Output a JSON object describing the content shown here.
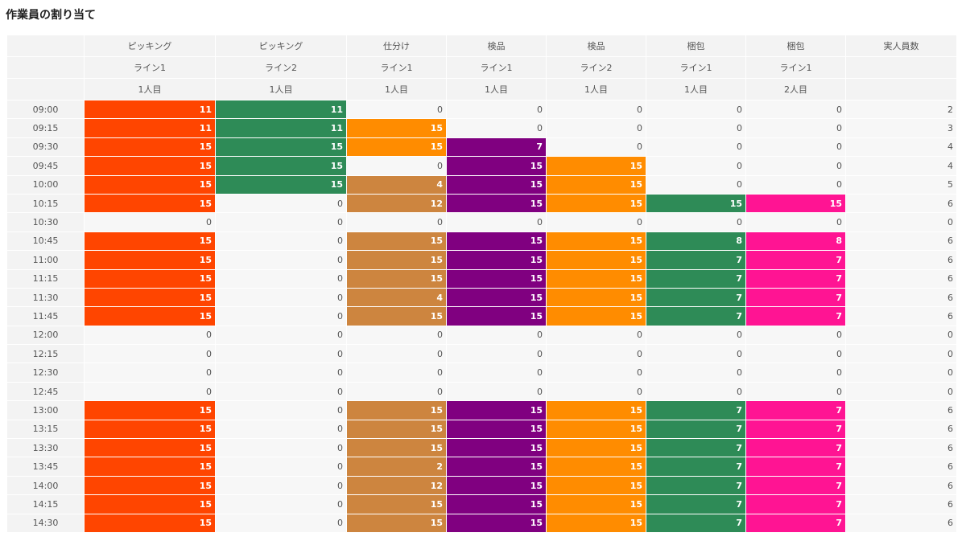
{
  "header": {
    "title": "作業員の割り当て"
  },
  "table": {
    "columns": [
      {
        "lines": [
          "ピッキング",
          "ライン1",
          "1人目"
        ],
        "color": "#ff4500"
      },
      {
        "lines": [
          "ピッキング",
          "ライン2",
          "1人目"
        ],
        "color": "#2e8b57"
      },
      {
        "lines": [
          "仕分け",
          "ライン1",
          "1人目"
        ],
        "color": "#cd853f"
      },
      {
        "lines": [
          "検品",
          "ライン1",
          "1人目"
        ],
        "color": "#800080"
      },
      {
        "lines": [
          "検品",
          "ライン2",
          "1人目"
        ],
        "color": "#ff8c00"
      },
      {
        "lines": [
          "梱包",
          "ライン1",
          "1人目"
        ],
        "color": "#2e8b57"
      },
      {
        "lines": [
          "梱包",
          "ライン1",
          "2人目"
        ],
        "color": "#ff1493"
      },
      {
        "lines": [
          "実人員数"
        ]
      }
    ],
    "rows": [
      {
        "time": "09:00",
        "values": [
          11,
          11,
          0,
          0,
          0,
          0,
          0
        ],
        "total": 2
      },
      {
        "time": "09:15",
        "values": [
          11,
          11,
          15,
          0,
          0,
          0,
          0
        ],
        "total": 3,
        "overrides": {
          "2": "#ff8c00"
        }
      },
      {
        "time": "09:30",
        "values": [
          15,
          15,
          15,
          7,
          0,
          0,
          0
        ],
        "total": 4,
        "overrides": {
          "2": "#ff8c00"
        }
      },
      {
        "time": "09:45",
        "values": [
          15,
          15,
          0,
          15,
          15,
          0,
          0
        ],
        "total": 4
      },
      {
        "time": "10:00",
        "values": [
          15,
          15,
          4,
          15,
          15,
          0,
          0
        ],
        "total": 5
      },
      {
        "time": "10:15",
        "values": [
          15,
          0,
          12,
          15,
          15,
          15,
          15
        ],
        "total": 6
      },
      {
        "time": "10:30",
        "values": [
          0,
          0,
          0,
          0,
          0,
          0,
          0
        ],
        "total": 0
      },
      {
        "time": "10:45",
        "values": [
          15,
          0,
          15,
          15,
          15,
          8,
          8
        ],
        "total": 6
      },
      {
        "time": "11:00",
        "values": [
          15,
          0,
          15,
          15,
          15,
          7,
          7
        ],
        "total": 6
      },
      {
        "time": "11:15",
        "values": [
          15,
          0,
          15,
          15,
          15,
          7,
          7
        ],
        "total": 6
      },
      {
        "time": "11:30",
        "values": [
          15,
          0,
          4,
          15,
          15,
          7,
          7
        ],
        "total": 6
      },
      {
        "time": "11:45",
        "values": [
          15,
          0,
          15,
          15,
          15,
          7,
          7
        ],
        "total": 6
      },
      {
        "time": "12:00",
        "values": [
          0,
          0,
          0,
          0,
          0,
          0,
          0
        ],
        "total": 0
      },
      {
        "time": "12:15",
        "values": [
          0,
          0,
          0,
          0,
          0,
          0,
          0
        ],
        "total": 0
      },
      {
        "time": "12:30",
        "values": [
          0,
          0,
          0,
          0,
          0,
          0,
          0
        ],
        "total": 0
      },
      {
        "time": "12:45",
        "values": [
          0,
          0,
          0,
          0,
          0,
          0,
          0
        ],
        "total": 0
      },
      {
        "time": "13:00",
        "values": [
          15,
          0,
          15,
          15,
          15,
          7,
          7
        ],
        "total": 6
      },
      {
        "time": "13:15",
        "values": [
          15,
          0,
          15,
          15,
          15,
          7,
          7
        ],
        "total": 6
      },
      {
        "time": "13:30",
        "values": [
          15,
          0,
          15,
          15,
          15,
          7,
          7
        ],
        "total": 6
      },
      {
        "time": "13:45",
        "values": [
          15,
          0,
          2,
          15,
          15,
          7,
          7
        ],
        "total": 6
      },
      {
        "time": "14:00",
        "values": [
          15,
          0,
          12,
          15,
          15,
          7,
          7
        ],
        "total": 6
      },
      {
        "time": "14:15",
        "values": [
          15,
          0,
          15,
          15,
          15,
          7,
          7
        ],
        "total": 6
      },
      {
        "time": "14:30",
        "values": [
          15,
          0,
          15,
          15,
          15,
          7,
          7
        ],
        "total": 6
      }
    ]
  }
}
